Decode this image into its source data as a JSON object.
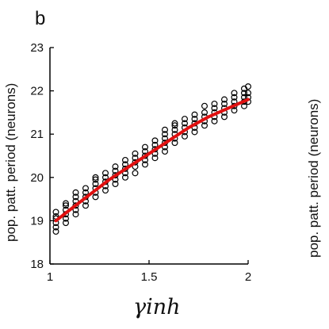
{
  "panel_label": "b",
  "right_ylabel": "pop. patt. period (neurons)",
  "chart_data": {
    "type": "scatter",
    "title": "",
    "xlabel": "γinh",
    "ylabel": "pop. patt. period (neurons)",
    "xlim": [
      1,
      2
    ],
    "ylim": [
      18,
      23
    ],
    "xticks": [
      "1",
      "1.5",
      "2"
    ],
    "yticks": [
      "18",
      "19",
      "20",
      "21",
      "22",
      "23"
    ],
    "grid": false,
    "series": [
      {
        "marker": "open-circle",
        "color": "#000000",
        "points": [
          {
            "x": 1.03,
            "y": [
              18.75,
              18.85,
              18.95,
              19.05,
              19.1,
              19.2
            ]
          },
          {
            "x": 1.08,
            "y": [
              18.95,
              19.05,
              19.15,
              19.25,
              19.35,
              19.4
            ]
          },
          {
            "x": 1.13,
            "y": [
              19.15,
              19.25,
              19.35,
              19.45,
              19.55,
              19.65
            ]
          },
          {
            "x": 1.18,
            "y": [
              19.35,
              19.45,
              19.55,
              19.65,
              19.75
            ]
          },
          {
            "x": 1.23,
            "y": [
              19.55,
              19.65,
              19.75,
              19.85,
              19.95,
              20.0
            ]
          },
          {
            "x": 1.28,
            "y": [
              19.7,
              19.8,
              19.9,
              20.0,
              20.1
            ]
          },
          {
            "x": 1.33,
            "y": [
              19.85,
              19.95,
              20.05,
              20.15,
              20.25
            ]
          },
          {
            "x": 1.38,
            "y": [
              20.0,
              20.1,
              20.2,
              20.3,
              20.4
            ]
          },
          {
            "x": 1.43,
            "y": [
              20.1,
              20.25,
              20.35,
              20.45,
              20.55
            ]
          },
          {
            "x": 1.48,
            "y": [
              20.3,
              20.4,
              20.5,
              20.6,
              20.7
            ]
          },
          {
            "x": 1.53,
            "y": [
              20.45,
              20.55,
              20.65,
              20.75,
              20.85
            ]
          },
          {
            "x": 1.58,
            "y": [
              20.6,
              20.7,
              20.8,
              20.9,
              21.0,
              21.1
            ]
          },
          {
            "x": 1.63,
            "y": [
              20.8,
              20.9,
              21.0,
              21.1,
              21.2,
              21.25
            ]
          },
          {
            "x": 1.68,
            "y": [
              20.95,
              21.05,
              21.15,
              21.25,
              21.35
            ]
          },
          {
            "x": 1.73,
            "y": [
              21.05,
              21.15,
              21.25,
              21.35,
              21.45
            ]
          },
          {
            "x": 1.78,
            "y": [
              21.2,
              21.3,
              21.4,
              21.5,
              21.65
            ]
          },
          {
            "x": 1.83,
            "y": [
              21.3,
              21.4,
              21.5,
              21.6,
              21.7
            ]
          },
          {
            "x": 1.88,
            "y": [
              21.4,
              21.5,
              21.6,
              21.7,
              21.8
            ]
          },
          {
            "x": 1.93,
            "y": [
              21.55,
              21.65,
              21.75,
              21.85,
              21.95
            ]
          },
          {
            "x": 1.98,
            "y": [
              21.65,
              21.75,
              21.85,
              21.95,
              22.05
            ]
          },
          {
            "x": 2.0,
            "y": [
              21.75,
              21.85,
              21.95,
              22.1
            ]
          }
        ]
      },
      {
        "marker": "line",
        "color": "#e01010",
        "x": [
          1.03,
          1.1,
          1.2,
          1.3,
          1.4,
          1.5,
          1.6,
          1.7,
          1.8,
          1.9,
          2.0
        ],
        "y": [
          19.0,
          19.25,
          19.6,
          19.95,
          20.25,
          20.55,
          20.85,
          21.15,
          21.4,
          21.6,
          21.8
        ]
      }
    ]
  }
}
